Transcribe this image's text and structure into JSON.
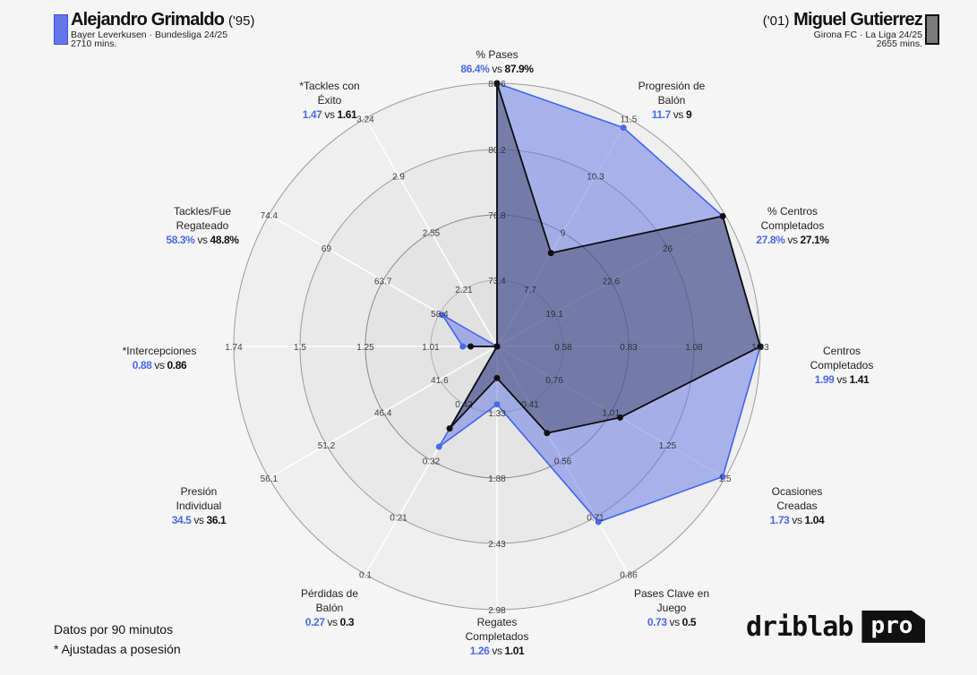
{
  "player1": {
    "name": "Alejandro Grimaldo",
    "year": "('95)",
    "club_league": "Bayer Leverkusen · Bundesliga 24/25",
    "minutes": "2710 mins.",
    "color": "#4a6ae8"
  },
  "player2": {
    "name": "Miguel Gutierrez",
    "year": "('01)",
    "club_league": "Girona FC · La Liga 24/25",
    "minutes": "2655 mins.",
    "color": "#111111"
  },
  "footer": {
    "note1": "Datos por 90 minutos",
    "note2": "* Ajustadas a posesión"
  },
  "logo": {
    "text": "driblab",
    "badge": "pro"
  },
  "chart_data": {
    "type": "radar",
    "title": "Alejandro Grimaldo vs Miguel Gutierrez",
    "categories": [
      "% Pases",
      "Progresión de Balón",
      "% Centros Completados",
      "Centros Completados",
      "Ocasiones Creadas",
      "Pases Clave en Juego",
      "Regates Completados",
      "Pérdidas de Balón",
      "Presión Individual",
      "*Intercepciones",
      "Tackles/Fue Regateado",
      "*Tackles con Éxito"
    ],
    "series": [
      {
        "name": "Alejandro Grimaldo",
        "color": "#4a6ae8",
        "values": [
          86.4,
          11.7,
          27.8,
          1.99,
          1.73,
          0.73,
          1.26,
          0.27,
          34.5,
          0.88,
          58.3,
          1.47
        ],
        "display": [
          "86.4%",
          "11.7",
          "27.8%",
          "1.99",
          "1.73",
          "0.73",
          "1.26",
          "0.27",
          "34.5",
          "0.88",
          "58.3%",
          "1.47"
        ]
      },
      {
        "name": "Miguel Gutierrez",
        "color": "#111111",
        "values": [
          87.9,
          9,
          27.1,
          1.41,
          1.04,
          0.5,
          1.01,
          0.3,
          36.1,
          0.86,
          48.8,
          1.61
        ],
        "display": [
          "87.9%",
          "9",
          "27.1%",
          "1.41",
          "1.04",
          "0.5",
          "1.01",
          "0.3",
          "36.1",
          "0.86",
          "48.8%",
          "1.61"
        ]
      }
    ],
    "axis_ticks": [
      [
        "73.4",
        "76.8",
        "80.2",
        "83.6"
      ],
      [
        "7.7",
        "9",
        "10.3",
        "11.5"
      ],
      [
        "19.1",
        "22.6",
        "26",
        ""
      ],
      [
        "0.58",
        "0.83",
        "1.08",
        "1.33"
      ],
      [
        "0.76",
        "1.01",
        "1.25",
        "1.5"
      ],
      [
        "0.41",
        "0.56",
        "0.71",
        "0.86"
      ],
      [
        "1.33",
        "1.88",
        "2.43",
        "2.98"
      ],
      [
        "0.42",
        "0.32",
        "0.21",
        "0.1"
      ],
      [
        "41.6",
        "46.4",
        "51.2",
        "56.1"
      ],
      [
        "1.01",
        "1.25",
        "1.5",
        "1.74"
      ],
      [
        "58.4",
        "63.7",
        "69",
        "74.4"
      ],
      [
        "2.21",
        "2.55",
        "2.9",
        "3.24"
      ]
    ],
    "notes": [
      "Datos por 90 minutos",
      "* Ajustadas a posesión"
    ]
  },
  "labels": [
    {
      "l1": "% Pases",
      "l2": "",
      "v1": "86.4%",
      "v2": "87.9%"
    },
    {
      "l1": "Progresión de",
      "l2": "Balón",
      "v1": "11.7",
      "v2": "9"
    },
    {
      "l1": "% Centros",
      "l2": "Completados",
      "v1": "27.8%",
      "v2": "27.1%"
    },
    {
      "l1": "Centros",
      "l2": "Completados",
      "v1": "1.99",
      "v2": "1.41"
    },
    {
      "l1": "Ocasiones",
      "l2": "Creadas",
      "v1": "1.73",
      "v2": "1.04"
    },
    {
      "l1": "Pases Clave en",
      "l2": "Juego",
      "v1": "0.73",
      "v2": "0.5"
    },
    {
      "l1": "Regates",
      "l2": "Completados",
      "v1": "1.26",
      "v2": "1.01"
    },
    {
      "l1": "Pérdidas de",
      "l2": "Balón",
      "v1": "0.27",
      "v2": "0.3"
    },
    {
      "l1": "Presión",
      "l2": "Individual",
      "v1": "34.5",
      "v2": "36.1"
    },
    {
      "l1": "*Intercepciones",
      "l2": "",
      "v1": "0.88",
      "v2": "0.86"
    },
    {
      "l1": "Tackles/Fue",
      "l2": "Regateado",
      "v1": "58.3%",
      "v2": "48.8%"
    },
    {
      "l1": "*Tackles con",
      "l2": "Éxito",
      "v1": "1.47",
      "v2": "1.61"
    }
  ],
  "vs": "vs"
}
